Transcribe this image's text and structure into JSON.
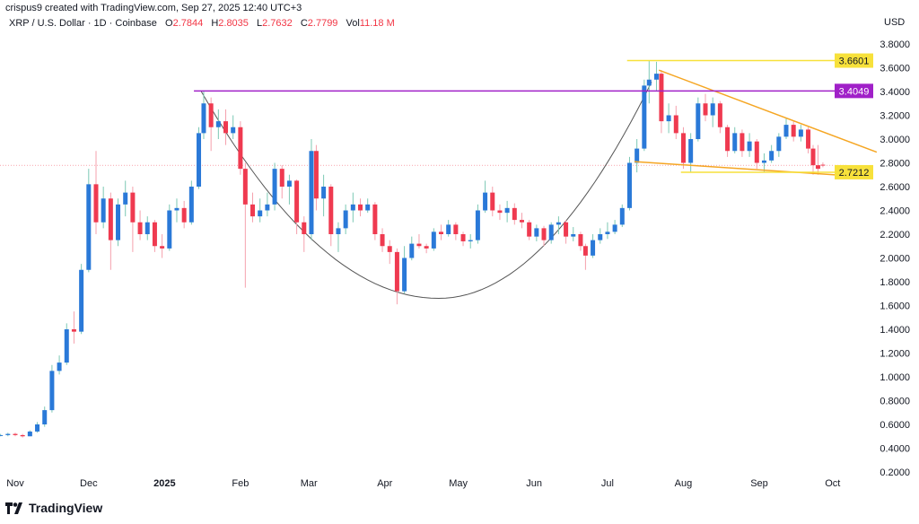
{
  "header": {
    "credit": "crispus9 created with TradingView.com, Sep 27, 2025 12:40 UTC+3",
    "symbol": "XRP / U.S. Dollar · 1D · Coinbase",
    "open_label": "O",
    "open": "2.7844",
    "high_label": "H",
    "high": "2.8035",
    "low_label": "L",
    "low": "2.7632",
    "close_label": "C",
    "close": "2.7799",
    "vol_label": "Vol",
    "vol": "11.18 M"
  },
  "brand": {
    "name": "TradingView",
    "logo_icon": "tradingview-logo-icon"
  },
  "colors": {
    "up": "#2a79d8",
    "up_wick": "#7cc8b4",
    "down": "#ef3a50",
    "down_wick": "#f5a0ac",
    "yellow": "#f7e13b",
    "purple": "#a020c8",
    "orange": "#f5a623",
    "curve": "#555555",
    "last_price": "#f23645"
  },
  "chart_data": {
    "type": "candlestick",
    "title": "",
    "currency": "USD",
    "ylim": [
      0.2,
      3.8
    ],
    "yticks": [
      "0.2000",
      "0.4000",
      "0.6000",
      "0.8000",
      "1.0000",
      "1.2000",
      "1.4000",
      "1.6000",
      "1.8000",
      "2.0000",
      "2.2000",
      "2.4000",
      "2.6000",
      "2.8000",
      "3.0000",
      "3.2000",
      "3.4000",
      "3.6000",
      "3.8000"
    ],
    "xticks": [
      {
        "label": "Nov",
        "date": "2024-11-01",
        "bold": false
      },
      {
        "label": "Dec",
        "date": "2024-12-01",
        "bold": false
      },
      {
        "label": "2025",
        "date": "2025-01-01",
        "bold": true
      },
      {
        "label": "Feb",
        "date": "2025-02-01",
        "bold": false
      },
      {
        "label": "Mar",
        "date": "2025-03-01",
        "bold": false
      },
      {
        "label": "Apr",
        "date": "2025-04-01",
        "bold": false
      },
      {
        "label": "May",
        "date": "2025-05-01",
        "bold": false
      },
      {
        "label": "Jun",
        "date": "2025-06-01",
        "bold": false
      },
      {
        "label": "Jul",
        "date": "2025-07-01",
        "bold": false
      },
      {
        "label": "Aug",
        "date": "2025-08-01",
        "bold": false
      },
      {
        "label": "Sep",
        "date": "2025-09-01",
        "bold": false
      },
      {
        "label": "Oct",
        "date": "2025-10-01",
        "bold": false
      }
    ],
    "grid": false,
    "last_price": 2.7799,
    "ohlc_columns": [
      "date",
      "open",
      "high",
      "low",
      "close"
    ],
    "ohlc": [
      [
        "2024-10-26",
        0.51,
        0.52,
        0.5,
        0.51
      ],
      [
        "2024-10-29",
        0.51,
        0.53,
        0.5,
        0.52
      ],
      [
        "2024-11-01",
        0.52,
        0.53,
        0.5,
        0.51
      ],
      [
        "2024-11-04",
        0.51,
        0.52,
        0.49,
        0.5
      ],
      [
        "2024-11-07",
        0.5,
        0.55,
        0.5,
        0.54
      ],
      [
        "2024-11-10",
        0.54,
        0.62,
        0.53,
        0.6
      ],
      [
        "2024-11-13",
        0.6,
        0.75,
        0.58,
        0.72
      ],
      [
        "2024-11-16",
        0.72,
        1.1,
        0.7,
        1.05
      ],
      [
        "2024-11-19",
        1.05,
        1.18,
        1.02,
        1.12
      ],
      [
        "2024-11-22",
        1.12,
        1.45,
        1.1,
        1.4
      ],
      [
        "2024-11-25",
        1.4,
        1.55,
        1.28,
        1.38
      ],
      [
        "2024-11-28",
        1.38,
        1.95,
        1.36,
        1.9
      ],
      [
        "2024-12-01",
        1.9,
        2.75,
        1.88,
        2.62
      ],
      [
        "2024-12-04",
        2.62,
        2.9,
        2.2,
        2.3
      ],
      [
        "2024-12-07",
        2.3,
        2.6,
        2.25,
        2.5
      ],
      [
        "2024-12-10",
        2.5,
        2.55,
        1.9,
        2.15
      ],
      [
        "2024-12-13",
        2.15,
        2.5,
        2.1,
        2.45
      ],
      [
        "2024-12-16",
        2.45,
        2.65,
        2.35,
        2.55
      ],
      [
        "2024-12-19",
        2.55,
        2.6,
        2.05,
        2.3
      ],
      [
        "2024-12-22",
        2.3,
        2.4,
        2.15,
        2.2
      ],
      [
        "2024-12-25",
        2.2,
        2.35,
        2.15,
        2.3
      ],
      [
        "2024-12-28",
        2.3,
        2.32,
        2.05,
        2.1
      ],
      [
        "2024-12-31",
        2.1,
        2.2,
        2.0,
        2.08
      ],
      [
        "2025-01-03",
        2.08,
        2.45,
        2.06,
        2.4
      ],
      [
        "2025-01-06",
        2.4,
        2.5,
        2.3,
        2.42
      ],
      [
        "2025-01-09",
        2.42,
        2.48,
        2.25,
        2.3
      ],
      [
        "2025-01-12",
        2.3,
        2.65,
        2.28,
        2.6
      ],
      [
        "2025-01-15",
        2.6,
        3.1,
        2.58,
        3.05
      ],
      [
        "2025-01-17",
        3.05,
        3.4,
        3.0,
        3.3
      ],
      [
        "2025-01-20",
        3.3,
        3.35,
        2.9,
        3.1
      ],
      [
        "2025-01-23",
        3.1,
        3.25,
        3.0,
        3.15
      ],
      [
        "2025-01-26",
        3.15,
        3.25,
        2.95,
        3.05
      ],
      [
        "2025-01-29",
        3.05,
        3.2,
        3.0,
        3.1
      ],
      [
        "2025-02-01",
        3.1,
        3.15,
        2.7,
        2.75
      ],
      [
        "2025-02-03",
        2.75,
        2.8,
        1.75,
        2.45
      ],
      [
        "2025-02-06",
        2.45,
        2.55,
        2.3,
        2.35
      ],
      [
        "2025-02-09",
        2.35,
        2.5,
        2.3,
        2.4
      ],
      [
        "2025-02-12",
        2.4,
        2.55,
        2.35,
        2.45
      ],
      [
        "2025-02-15",
        2.45,
        2.8,
        2.4,
        2.75
      ],
      [
        "2025-02-18",
        2.75,
        2.78,
        2.5,
        2.6
      ],
      [
        "2025-02-21",
        2.6,
        2.7,
        2.45,
        2.65
      ],
      [
        "2025-02-24",
        2.65,
        2.66,
        2.2,
        2.3
      ],
      [
        "2025-02-27",
        2.3,
        2.35,
        2.05,
        2.2
      ],
      [
        "2025-03-02",
        2.2,
        3.0,
        2.15,
        2.9
      ],
      [
        "2025-03-04",
        2.9,
        2.95,
        2.4,
        2.5
      ],
      [
        "2025-03-07",
        2.5,
        2.7,
        2.35,
        2.6
      ],
      [
        "2025-03-10",
        2.6,
        2.62,
        2.1,
        2.2
      ],
      [
        "2025-03-13",
        2.2,
        2.3,
        2.05,
        2.25
      ],
      [
        "2025-03-16",
        2.25,
        2.45,
        2.2,
        2.4
      ],
      [
        "2025-03-19",
        2.4,
        2.55,
        2.3,
        2.45
      ],
      [
        "2025-03-22",
        2.45,
        2.5,
        2.35,
        2.4
      ],
      [
        "2025-03-25",
        2.4,
        2.5,
        2.38,
        2.45
      ],
      [
        "2025-03-28",
        2.45,
        2.47,
        2.15,
        2.2
      ],
      [
        "2025-03-31",
        2.2,
        2.25,
        2.05,
        2.1
      ],
      [
        "2025-04-03",
        2.1,
        2.15,
        1.95,
        2.05
      ],
      [
        "2025-04-06",
        2.05,
        2.08,
        1.61,
        1.72
      ],
      [
        "2025-04-09",
        1.72,
        2.1,
        1.7,
        2.0
      ],
      [
        "2025-04-12",
        2.0,
        2.18,
        1.98,
        2.12
      ],
      [
        "2025-04-15",
        2.12,
        2.2,
        2.08,
        2.1
      ],
      [
        "2025-04-18",
        2.1,
        2.12,
        2.04,
        2.08
      ],
      [
        "2025-04-21",
        2.08,
        2.25,
        2.06,
        2.22
      ],
      [
        "2025-04-24",
        2.22,
        2.28,
        2.15,
        2.2
      ],
      [
        "2025-04-27",
        2.2,
        2.32,
        2.18,
        2.28
      ],
      [
        "2025-04-30",
        2.28,
        2.3,
        2.15,
        2.2
      ],
      [
        "2025-05-03",
        2.2,
        2.22,
        2.1,
        2.14
      ],
      [
        "2025-05-06",
        2.14,
        2.2,
        2.08,
        2.15
      ],
      [
        "2025-05-09",
        2.15,
        2.45,
        2.12,
        2.4
      ],
      [
        "2025-05-12",
        2.4,
        2.65,
        2.38,
        2.55
      ],
      [
        "2025-05-15",
        2.55,
        2.6,
        2.35,
        2.4
      ],
      [
        "2025-05-18",
        2.4,
        2.45,
        2.32,
        2.38
      ],
      [
        "2025-05-21",
        2.38,
        2.48,
        2.3,
        2.42
      ],
      [
        "2025-05-24",
        2.42,
        2.46,
        2.28,
        2.32
      ],
      [
        "2025-05-27",
        2.32,
        2.38,
        2.25,
        2.3
      ],
      [
        "2025-05-30",
        2.3,
        2.32,
        2.15,
        2.18
      ],
      [
        "2025-06-02",
        2.18,
        2.28,
        2.14,
        2.25
      ],
      [
        "2025-06-05",
        2.25,
        2.27,
        2.1,
        2.15
      ],
      [
        "2025-06-08",
        2.15,
        2.3,
        2.12,
        2.28
      ],
      [
        "2025-06-11",
        2.28,
        2.35,
        2.2,
        2.3
      ],
      [
        "2025-06-14",
        2.3,
        2.32,
        2.12,
        2.18
      ],
      [
        "2025-06-17",
        2.18,
        2.26,
        2.14,
        2.2
      ],
      [
        "2025-06-20",
        2.2,
        2.22,
        2.06,
        2.1
      ],
      [
        "2025-06-22",
        2.1,
        2.12,
        1.9,
        2.02
      ],
      [
        "2025-06-25",
        2.02,
        2.2,
        2.0,
        2.15
      ],
      [
        "2025-06-28",
        2.15,
        2.25,
        2.12,
        2.2
      ],
      [
        "2025-07-01",
        2.2,
        2.3,
        2.16,
        2.22
      ],
      [
        "2025-07-04",
        2.22,
        2.32,
        2.2,
        2.28
      ],
      [
        "2025-07-07",
        2.28,
        2.45,
        2.26,
        2.42
      ],
      [
        "2025-07-10",
        2.42,
        2.85,
        2.4,
        2.8
      ],
      [
        "2025-07-13",
        2.8,
        3.0,
        2.72,
        2.92
      ],
      [
        "2025-07-16",
        2.92,
        3.5,
        2.9,
        3.45
      ],
      [
        "2025-07-18",
        3.45,
        3.66,
        3.3,
        3.5
      ],
      [
        "2025-07-21",
        3.5,
        3.65,
        3.4,
        3.55
      ],
      [
        "2025-07-23",
        3.55,
        3.58,
        3.05,
        3.15
      ],
      [
        "2025-07-26",
        3.15,
        3.3,
        3.05,
        3.2
      ],
      [
        "2025-07-29",
        3.2,
        3.28,
        3.0,
        3.05
      ],
      [
        "2025-08-01",
        3.05,
        3.1,
        2.75,
        2.8
      ],
      [
        "2025-08-04",
        2.8,
        3.05,
        2.72,
        3.0
      ],
      [
        "2025-08-07",
        3.0,
        3.35,
        2.98,
        3.3
      ],
      [
        "2025-08-10",
        3.3,
        3.38,
        3.15,
        3.2
      ],
      [
        "2025-08-13",
        3.2,
        3.35,
        3.1,
        3.3
      ],
      [
        "2025-08-16",
        3.3,
        3.32,
        3.05,
        3.1
      ],
      [
        "2025-08-19",
        3.1,
        3.12,
        2.85,
        2.9
      ],
      [
        "2025-08-22",
        2.9,
        3.1,
        2.88,
        3.05
      ],
      [
        "2025-08-25",
        3.05,
        3.08,
        2.85,
        2.9
      ],
      [
        "2025-08-28",
        2.9,
        3.05,
        2.85,
        2.98
      ],
      [
        "2025-08-31",
        2.98,
        3.0,
        2.75,
        2.8
      ],
      [
        "2025-09-03",
        2.8,
        2.88,
        2.72,
        2.82
      ],
      [
        "2025-09-06",
        2.82,
        2.95,
        2.8,
        2.9
      ],
      [
        "2025-09-09",
        2.9,
        3.05,
        2.85,
        3.02
      ],
      [
        "2025-09-12",
        3.02,
        3.18,
        3.0,
        3.12
      ],
      [
        "2025-09-15",
        3.12,
        3.15,
        2.98,
        3.02
      ],
      [
        "2025-09-18",
        3.02,
        3.12,
        2.98,
        3.08
      ],
      [
        "2025-09-21",
        3.08,
        3.1,
        2.88,
        2.92
      ],
      [
        "2025-09-23",
        2.92,
        2.95,
        2.7,
        2.78
      ],
      [
        "2025-09-25",
        2.78,
        2.95,
        2.7,
        2.75
      ],
      [
        "2025-09-27",
        2.7844,
        2.8035,
        2.7632,
        2.7799
      ]
    ],
    "drawings": {
      "levels": [
        {
          "name": "resistance-high",
          "price": 3.6601,
          "label": "3.6601",
          "from": "2025-07-09",
          "color": "yellow"
        },
        {
          "name": "resistance-mid",
          "price": 3.4049,
          "label": "3.4049",
          "from": "2025-01-13",
          "color": "purple"
        },
        {
          "name": "support",
          "price": 2.7212,
          "label": "2.7212",
          "from": "2025-07-31",
          "color": "yellow"
        }
      ],
      "trendlines": [
        {
          "name": "upper-wedge-line",
          "from": [
            "2025-07-22",
            3.58
          ],
          "to": [
            "2025-10-19",
            2.89
          ]
        },
        {
          "name": "lower-wedge-line",
          "from": [
            "2025-07-12",
            2.81
          ],
          "to": [
            "2025-10-16",
            2.68
          ]
        }
      ],
      "cup_curve": {
        "start": [
          "2025-01-16",
          3.4
        ],
        "bottom": [
          "2025-04-23",
          1.66
        ],
        "end": [
          "2025-07-19",
          3.48
        ]
      }
    }
  }
}
